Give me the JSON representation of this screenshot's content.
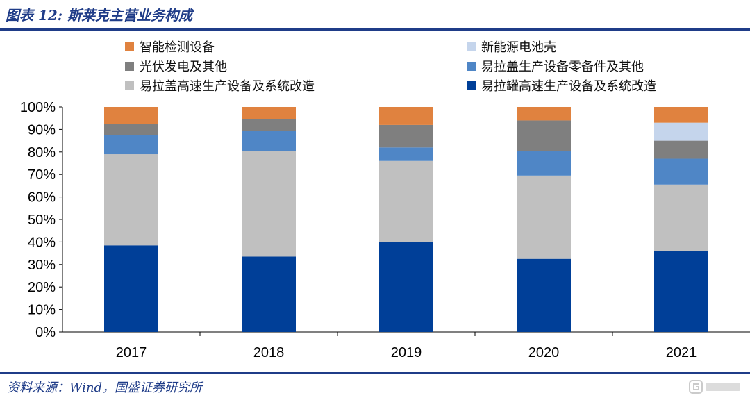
{
  "header": {
    "title": "图表 12: 斯莱克主营业务构成"
  },
  "footer": {
    "source": "资料来源：Wind，国盛证券研究所",
    "watermark_icon": "gelonghui-logo-icon"
  },
  "chart_data": {
    "type": "bar",
    "stacked": true,
    "percent": true,
    "categories": [
      "2017",
      "2018",
      "2019",
      "2020",
      "2021"
    ],
    "ylim": [
      0,
      100
    ],
    "yticks": [
      "0%",
      "10%",
      "20%",
      "30%",
      "40%",
      "50%",
      "60%",
      "70%",
      "80%",
      "90%",
      "100%"
    ],
    "grid": false,
    "legend_position": "top",
    "series": [
      {
        "name": "易拉罐高速生产设备及系统改造",
        "color": "#003f98",
        "values": [
          38.5,
          33.5,
          40.0,
          32.5,
          36.0
        ]
      },
      {
        "name": "易拉盖高速生产设备及系统改造",
        "color": "#c0c0c0",
        "values": [
          40.5,
          47.0,
          36.0,
          37.0,
          29.5
        ]
      },
      {
        "name": "易拉盖生产设备零备件及其他",
        "color": "#4f86c6",
        "values": [
          8.5,
          9.0,
          6.0,
          11.0,
          11.5
        ]
      },
      {
        "name": "光伏发电及其他",
        "color": "#7f7f7f",
        "values": [
          5.0,
          5.0,
          10.0,
          13.5,
          8.0
        ]
      },
      {
        "name": "新能源电池壳",
        "color": "#c5d5ec",
        "values": [
          0,
          0,
          0,
          0,
          8.0
        ]
      },
      {
        "name": "智能检测设备",
        "color": "#e0823f",
        "values": [
          7.5,
          5.5,
          8.0,
          6.0,
          7.0
        ]
      }
    ]
  }
}
